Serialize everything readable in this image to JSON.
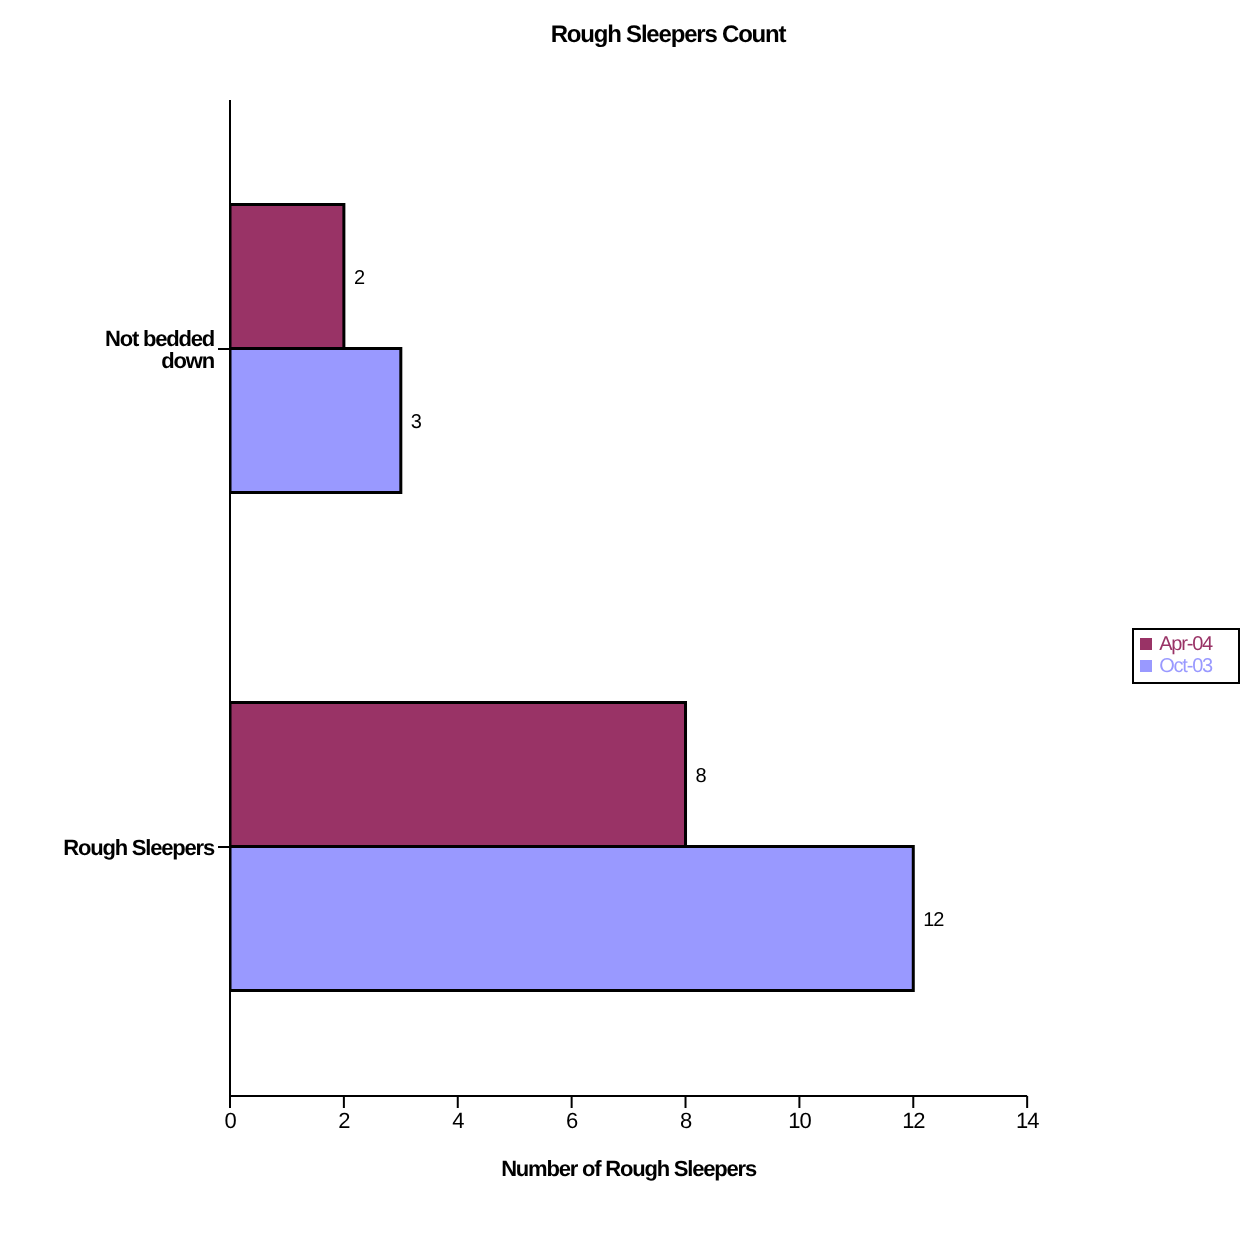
{
  "chart_data": {
    "type": "bar",
    "orientation": "horizontal",
    "title": "Rough Sleepers Count",
    "xlabel": "Number of Rough Sleepers",
    "categories": [
      "Not bedded down",
      "Rough Sleepers"
    ],
    "series": [
      {
        "name": "Apr-04",
        "color": "#993366",
        "values": [
          2,
          8
        ]
      },
      {
        "name": "Oct-03",
        "color": "#9999ff",
        "values": [
          3,
          12
        ]
      }
    ],
    "xlim": [
      0,
      14
    ],
    "xticks": [
      0,
      2,
      4,
      6,
      8,
      10,
      12,
      14
    ],
    "data_labels": true,
    "legend": "right",
    "grid": false
  }
}
